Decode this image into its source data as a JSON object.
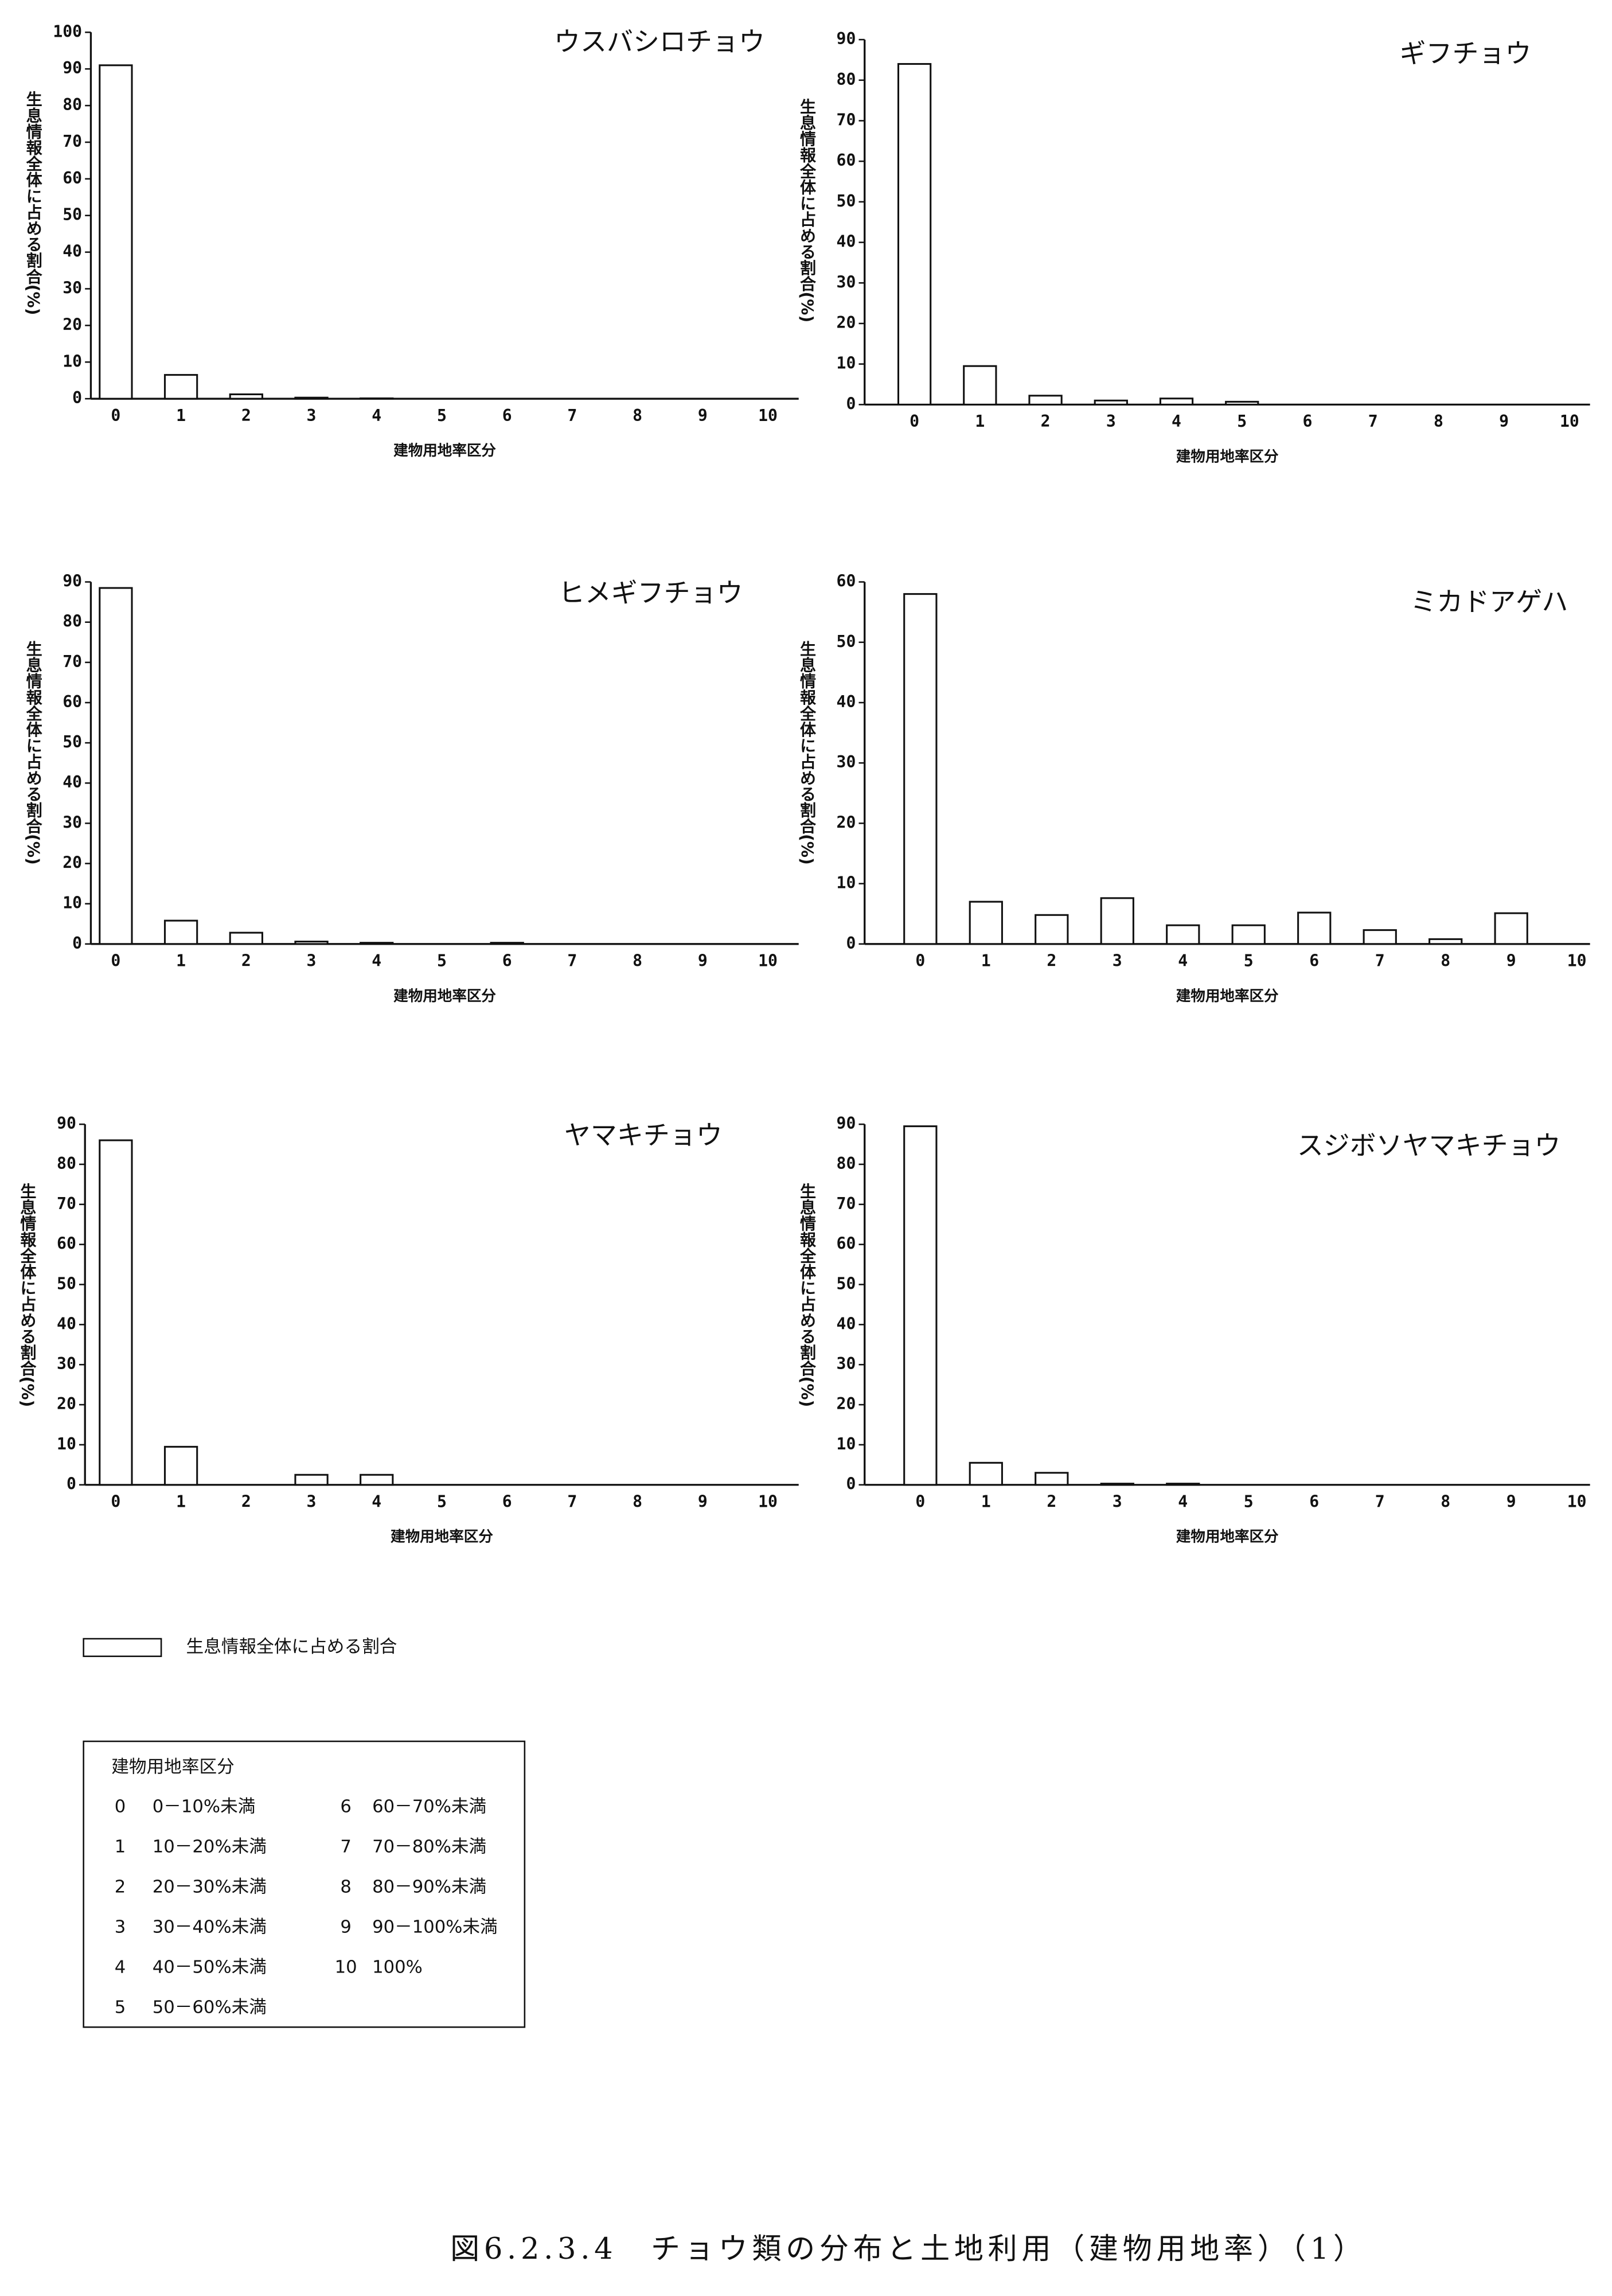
{
  "chart_data": [
    {
      "type": "bar",
      "title": "ウスバシロチョウ",
      "ylabel": "生息情報全体に占める割合(%)",
      "xlabel": "建物用地率区分",
      "categories": [
        "0",
        "1",
        "2",
        "3",
        "4",
        "5",
        "6",
        "7",
        "8",
        "9",
        "10"
      ],
      "values": [
        91,
        6.5,
        1.2,
        0.3,
        0.1,
        0,
        0,
        0,
        0,
        0,
        0
      ],
      "color": "#ffffff",
      "ylim": [
        0,
        100
      ],
      "yticks": [
        0,
        10,
        20,
        30,
        40,
        50,
        60,
        70,
        80,
        90,
        100
      ]
    },
    {
      "type": "bar",
      "title": "ギフチョウ",
      "ylabel": "生息情報全体に占める割合(%)",
      "xlabel": "建物用地率区分",
      "categories": [
        "0",
        "1",
        "2",
        "3",
        "4",
        "5",
        "6",
        "7",
        "8",
        "9",
        "10"
      ],
      "values": [
        84,
        9.5,
        2.2,
        1,
        1.5,
        0.7,
        0,
        0,
        0,
        0,
        0
      ],
      "color": "#ffffff",
      "ylim": [
        0,
        90
      ],
      "yticks": [
        0,
        10,
        20,
        30,
        40,
        50,
        60,
        70,
        80,
        90
      ]
    },
    {
      "type": "bar",
      "title": "ヒメギフチョウ",
      "ylabel": "生息情報全体に占める割合(%)",
      "xlabel": "建物用地率区分",
      "categories": [
        "0",
        "1",
        "2",
        "3",
        "4",
        "5",
        "6",
        "7",
        "8",
        "9",
        "10"
      ],
      "values": [
        88.5,
        5.8,
        2.8,
        0.6,
        0.3,
        0,
        0.3,
        0,
        0,
        0,
        0
      ],
      "color": "#ffffff",
      "ylim": [
        0,
        90
      ],
      "yticks": [
        0,
        10,
        20,
        30,
        40,
        50,
        60,
        70,
        80,
        90
      ]
    },
    {
      "type": "bar",
      "title": "ミカドアゲハ",
      "ylabel": "生息情報全体に占める割合(%)",
      "xlabel": "建物用地率区分",
      "categories": [
        "0",
        "1",
        "2",
        "3",
        "4",
        "5",
        "6",
        "7",
        "8",
        "9",
        "10"
      ],
      "values": [
        58,
        7,
        4.8,
        7.6,
        3.1,
        3.1,
        5.2,
        2.3,
        0.8,
        5.1,
        0
      ],
      "color": "#ffffff",
      "ylim": [
        0,
        60
      ],
      "yticks": [
        0,
        10,
        20,
        30,
        40,
        50,
        60
      ]
    },
    {
      "type": "bar",
      "title": "ヤマキチョウ",
      "ylabel": "生息情報全体に占める割合(%)",
      "xlabel": "建物用地率区分",
      "categories": [
        "0",
        "1",
        "2",
        "3",
        "4",
        "5",
        "6",
        "7",
        "8",
        "9",
        "10"
      ],
      "values": [
        86,
        9.5,
        0,
        2.5,
        2.5,
        0,
        0,
        0,
        0,
        0,
        0
      ],
      "color": "#ffffff",
      "ylim": [
        0,
        90
      ],
      "yticks": [
        0,
        10,
        20,
        30,
        40,
        50,
        60,
        70,
        80,
        90
      ]
    },
    {
      "type": "bar",
      "title": "スジボソヤマキチョウ",
      "ylabel": "生息情報全体に占める割合(%)",
      "xlabel": "建物用地率区分",
      "categories": [
        "0",
        "1",
        "2",
        "3",
        "4",
        "5",
        "6",
        "7",
        "8",
        "9",
        "10"
      ],
      "values": [
        89.5,
        5.5,
        3,
        0.3,
        0.3,
        0,
        0,
        0,
        0,
        0,
        0
      ],
      "color": "#ffffff",
      "ylim": [
        0,
        90
      ],
      "yticks": [
        0,
        10,
        20,
        30,
        40,
        50,
        60,
        70,
        80,
        90
      ]
    }
  ],
  "legend": {
    "label": "生息情報全体に占める割合"
  },
  "key": {
    "title": "建物用地率区分",
    "rows": [
      [
        "0",
        "0－10%未満"
      ],
      [
        "1",
        "10－20%未満"
      ],
      [
        "2",
        "20－30%未満"
      ],
      [
        "3",
        "30－40%未満"
      ],
      [
        "4",
        "40－50%未満"
      ],
      [
        "5",
        "50－60%未満"
      ],
      [
        "6",
        "60－70%未満"
      ],
      [
        "7",
        "70－80%未満"
      ],
      [
        "8",
        "80－90%未満"
      ],
      [
        "9",
        "90－100%未満"
      ],
      [
        "10",
        "100%"
      ]
    ]
  },
  "caption": "図6.2.3.4　チョウ類の分布と土地利用（建物用地率）（1）"
}
